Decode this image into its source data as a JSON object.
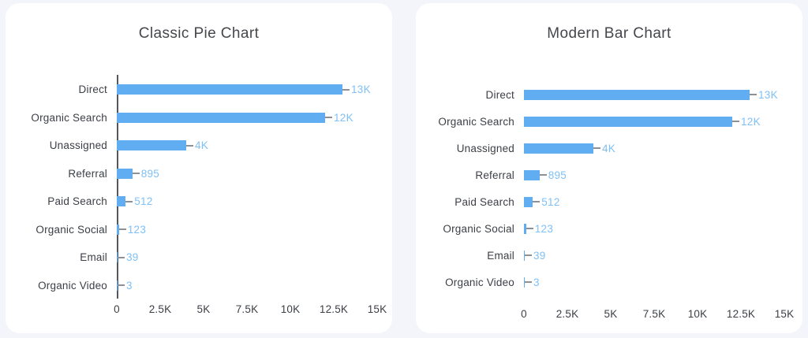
{
  "page": {
    "background": "#f3f5fa",
    "card_background": "#ffffff"
  },
  "chart_data": [
    {
      "type": "bar",
      "orientation": "horizontal",
      "title": "Classic Pie Chart",
      "categories": [
        "Direct",
        "Organic Search",
        "Unassigned",
        "Referral",
        "Paid Search",
        "Organic Social",
        "Email",
        "Organic Video"
      ],
      "values": [
        13000,
        12000,
        4000,
        895,
        512,
        123,
        39,
        3
      ],
      "value_labels": [
        "13K",
        "12K",
        "4K",
        "895",
        "512",
        "123",
        "39",
        "3"
      ],
      "x_ticks": [
        "0",
        "2.5K",
        "5K",
        "7.5K",
        "10K",
        "12.5K",
        "15K"
      ],
      "x_tick_values": [
        0,
        2500,
        5000,
        7500,
        10000,
        12500,
        15000
      ],
      "xlim": [
        0,
        15000
      ],
      "grid": false,
      "legend": "none",
      "y_axis_line": true,
      "bar_color": "#60adf1",
      "value_label_color": "#7fc0f6",
      "dash_color": "#8d9095",
      "text_color": "#3b3f45"
    },
    {
      "type": "bar",
      "orientation": "horizontal",
      "title": "Modern Bar Chart",
      "categories": [
        "Direct",
        "Organic Search",
        "Unassigned",
        "Referral",
        "Paid Search",
        "Organic Social",
        "Email",
        "Organic Video"
      ],
      "values": [
        13000,
        12000,
        4000,
        895,
        512,
        123,
        39,
        3
      ],
      "value_labels": [
        "13K",
        "12K",
        "4K",
        "895",
        "512",
        "123",
        "39",
        "3"
      ],
      "x_ticks": [
        "0",
        "2.5K",
        "5K",
        "7.5K",
        "10K",
        "12.5K",
        "15K"
      ],
      "x_tick_values": [
        0,
        2500,
        5000,
        7500,
        10000,
        12500,
        15000
      ],
      "xlim": [
        0,
        15000
      ],
      "grid": false,
      "legend": "none",
      "y_axis_line": false,
      "bar_color": "#60adf1",
      "value_label_color": "#7fc0f6",
      "dash_color": "#8d9095",
      "text_color": "#3b3f45"
    }
  ]
}
